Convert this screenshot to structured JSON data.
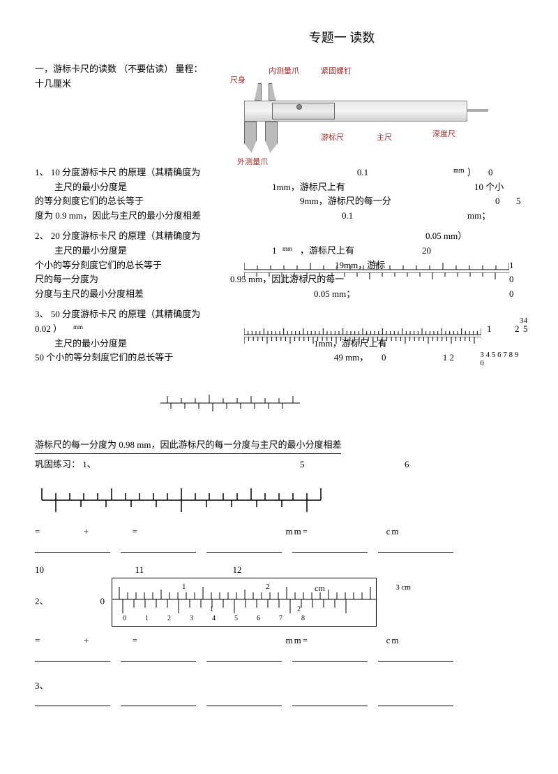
{
  "title": "专题一 读数",
  "intro": {
    "line1": "一，游标卡尺的读数 （不要估读） 量程：",
    "line2": "十几厘米"
  },
  "caliper_labels": {
    "body": "尺身",
    "inner_jaw": "内测量爪",
    "screw": "紧固螺钉",
    "vernier": "游标尺",
    "main": "主尺",
    "depth": "深度尺",
    "outer_jaw": "外测量爪"
  },
  "sec1": {
    "h": "1、 10 分度游标卡尺  的原理（其精确度为",
    "r1_a": "主尺的最小分度是",
    "r1_b": "1mm，游标尺上有",
    "r1_c": "10 个小",
    "r1_v1": "0.1",
    "r1_unit": "mm",
    "r1_d": "）",
    "r1_e": "0",
    "r2_a": "的等分刻度它们的总长等于",
    "r2_b": "9mm，游标尺的每一分",
    "r2_c": "0",
    "r2_d": "5",
    "r3_a": "度为 0.9 mm，因此与主尺的最小分度相差",
    "r3_b": "0.1",
    "r3_c": "mm；"
  },
  "sec2": {
    "h": "2、 20 分度游标卡尺  的原理（其精确度为",
    "h_v": "0.05 mm）",
    "r1_a": "主尺的最小分度是",
    "r1_b": "1",
    "r1_c": "，游标尺上有",
    "r1_d": "20",
    "r1_unit": "mm",
    "r2_a": "个小的等分刻度它们的总长等于",
    "r2_b": "19mm，游标",
    "r2_c": "1",
    "r3_a": "尺的每一分度为",
    "r3_b": "0.95 mm，因此游标尺的每一",
    "r3_c": "0",
    "r4_a": "分度与主尺的最小分度相差",
    "r4_b": "0.05 mm；",
    "r4_c": "0"
  },
  "sec3": {
    "h": "3、 50 分度游标卡尺  的原理（其精确度为",
    "h2": "0.02  ）",
    "h2_unit": "mm",
    "r1_a": "主尺的最小分度是",
    "r1_b": "1mm，游标尺上有",
    "r1_c": "1",
    "r1_d": "2",
    "r1_e": "34",
    "r1_f": "5",
    "r2_a": "50 个小的等分刻度它们的总长等于",
    "r2_b": "49 mm，",
    "r2_c": "0",
    "r2_d": "1 2",
    "r2_e": "3 4 5 6 7 8 9 0"
  },
  "mid": {
    "line1": "游标尺的每一分度为  0.98 mm，因此游标尺的每一分度与主尺的最小分度相差",
    "line2": "巩固练习： 1、",
    "n5": "5",
    "n6": "6"
  },
  "eq1": {
    "eq": "=",
    "plus": "+",
    "mm": "mm=",
    "cm": "cm"
  },
  "ex2": {
    "label": "2、",
    "n10": "10",
    "n11": "11",
    "n12": "12",
    "zero": "0",
    "cm": "cm",
    "cm3": "3 cm",
    "s1": "1",
    "s2": "2",
    "b0": "0",
    "b1": "1",
    "b2": "2",
    "b3": "3",
    "b4": "4",
    "b5": "5",
    "b6": "6",
    "b7": "7",
    "b8": "8"
  },
  "ex3": {
    "label": "3、"
  },
  "colors": {
    "label_color": "#a52a2a",
    "text_color": "#000000",
    "bg": "#ffffff"
  }
}
